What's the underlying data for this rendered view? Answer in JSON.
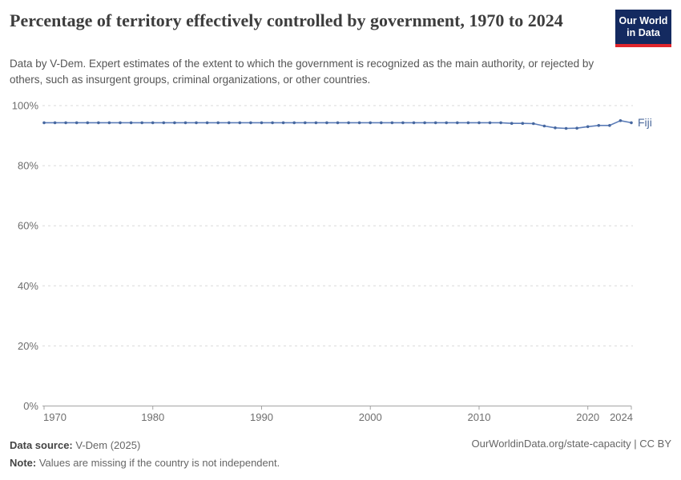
{
  "header": {
    "title": "Percentage of territory effectively controlled by government, 1970 to 2024",
    "subtitle": "Data by V-Dem. Expert estimates of the extent to which the government is recognized as the main authority, or rejected by others, such as insurgent groups, criminal organizations, or other countries.",
    "logo": {
      "line1": "Our World",
      "line2": "in Data",
      "bg_color": "#142a60",
      "accent_color": "#e0262c"
    }
  },
  "chart_data": {
    "type": "line",
    "title": "Percentage of territory effectively controlled by government, 1970 to 2024",
    "xlabel": "",
    "ylabel": "",
    "xlim": [
      1970,
      2024
    ],
    "ylim": [
      0,
      100
    ],
    "grid": true,
    "legend_position": "end-of-line",
    "grid_color": "#d9d9d9",
    "axis_color": "#a3a3a3",
    "tick_color": "#6e6e6e",
    "x_ticks": [
      {
        "v": 1970,
        "label": "1970"
      },
      {
        "v": 1980,
        "label": "1980"
      },
      {
        "v": 1990,
        "label": "1990"
      },
      {
        "v": 2000,
        "label": "2000"
      },
      {
        "v": 2010,
        "label": "2010"
      },
      {
        "v": 2020,
        "label": "2020"
      },
      {
        "v": 2024,
        "label": "2024"
      }
    ],
    "y_ticks": [
      {
        "v": 0,
        "label": "0%"
      },
      {
        "v": 20,
        "label": "20%"
      },
      {
        "v": 40,
        "label": "40%"
      },
      {
        "v": 60,
        "label": "60%"
      },
      {
        "v": 80,
        "label": "80%"
      },
      {
        "v": 100,
        "label": "100%"
      }
    ],
    "series": [
      {
        "name": "Fiji",
        "line_color": "#5b7cb8",
        "marker_color": "#46679f",
        "label_color": "#4c6a9c",
        "x": [
          1970,
          1971,
          1972,
          1973,
          1974,
          1975,
          1976,
          1977,
          1978,
          1979,
          1980,
          1981,
          1982,
          1983,
          1984,
          1985,
          1986,
          1987,
          1988,
          1989,
          1990,
          1991,
          1992,
          1993,
          1994,
          1995,
          1996,
          1997,
          1998,
          1999,
          2000,
          2001,
          2002,
          2003,
          2004,
          2005,
          2006,
          2007,
          2008,
          2009,
          2010,
          2011,
          2012,
          2013,
          2014,
          2015,
          2016,
          2017,
          2018,
          2019,
          2020,
          2021,
          2022,
          2023,
          2024
        ],
        "values": [
          94.3,
          94.3,
          94.3,
          94.3,
          94.3,
          94.3,
          94.3,
          94.3,
          94.3,
          94.3,
          94.3,
          94.3,
          94.3,
          94.3,
          94.3,
          94.3,
          94.3,
          94.3,
          94.3,
          94.3,
          94.3,
          94.3,
          94.3,
          94.3,
          94.3,
          94.3,
          94.3,
          94.3,
          94.3,
          94.3,
          94.3,
          94.3,
          94.3,
          94.3,
          94.3,
          94.3,
          94.3,
          94.3,
          94.3,
          94.3,
          94.3,
          94.3,
          94.3,
          94.1,
          94.1,
          94.0,
          93.2,
          92.6,
          92.4,
          92.5,
          93.0,
          93.4,
          93.4,
          95.0,
          94.3
        ]
      }
    ]
  },
  "footer": {
    "source_label": "Data source:",
    "source_value": " V-Dem (2025)",
    "note_label": "Note:",
    "note_value": " Values are missing if the country is not independent.",
    "right": "OurWorldinData.org/state-capacity | CC BY"
  }
}
